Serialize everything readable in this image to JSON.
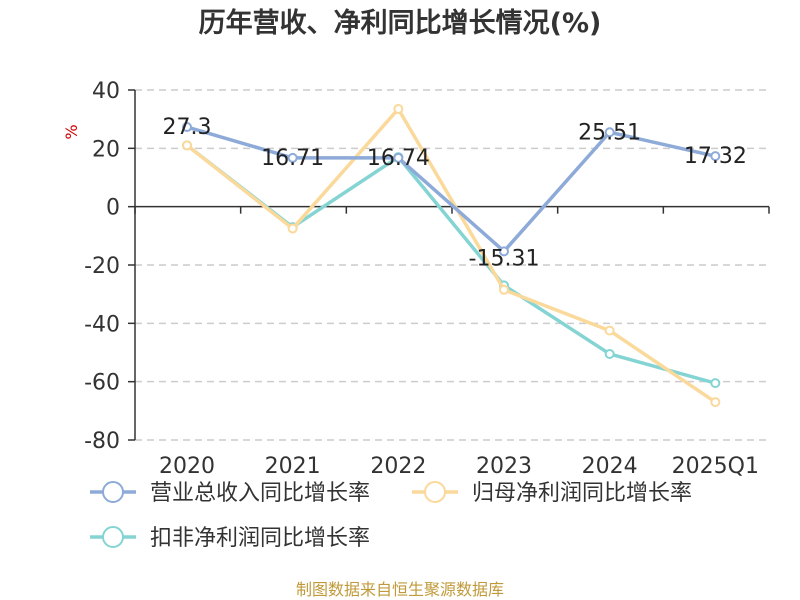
{
  "chart_data": {
    "type": "line",
    "title": "历年营收、净利同比增长情况(%)",
    "ylabel": "%",
    "xlabel": "",
    "categories": [
      "2020",
      "2021",
      "2022",
      "2023",
      "2024",
      "2025Q1"
    ],
    "ylim": [
      -80,
      40
    ],
    "yticks": [
      40,
      20,
      0,
      -20,
      -40,
      -60,
      -80
    ],
    "grid": true,
    "legend_position": "bottom",
    "series": [
      {
        "name": "营业总收入同比增长率",
        "color": "#8eaad8",
        "values": [
          27.3,
          16.71,
          16.74,
          -15.31,
          25.51,
          17.32
        ],
        "data_labels": [
          "27.3",
          "16.71",
          "16.74",
          "-15.31",
          "25.51",
          "17.32"
        ]
      },
      {
        "name": "归母净利润同比增长率",
        "color": "#fad99b",
        "values": [
          21,
          -7.5,
          33.5,
          -28.5,
          -42.5,
          -67
        ]
      },
      {
        "name": "扣非净利润同比增长率",
        "color": "#85d4d4",
        "values": [
          21,
          -7,
          17,
          -27,
          -50.5,
          -60.5
        ]
      }
    ]
  },
  "source": "制图数据来自恒生聚源数据库"
}
